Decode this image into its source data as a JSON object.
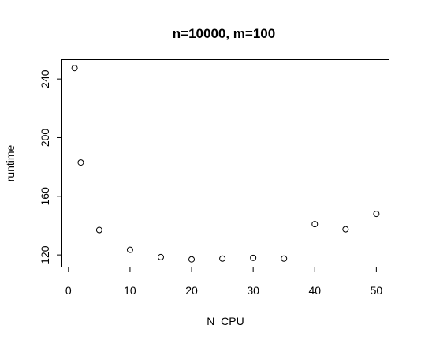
{
  "chart_data": {
    "type": "scatter",
    "title": "n=10000, m=100",
    "xlabel": "N_CPU",
    "ylabel": "runtime",
    "x": [
      1,
      2,
      5,
      10,
      15,
      20,
      25,
      30,
      35,
      40,
      45,
      50
    ],
    "y": [
      247.5,
      183.0,
      137.0,
      123.5,
      118.5,
      117.0,
      117.5,
      118.0,
      117.5,
      141.0,
      137.5,
      148.0
    ],
    "xlim": [
      -1,
      52
    ],
    "ylim": [
      112,
      253
    ],
    "xticks": [
      0,
      10,
      20,
      30,
      40,
      50
    ],
    "yticks": [
      120,
      160,
      200,
      240
    ],
    "grid": false,
    "legend": "none"
  }
}
